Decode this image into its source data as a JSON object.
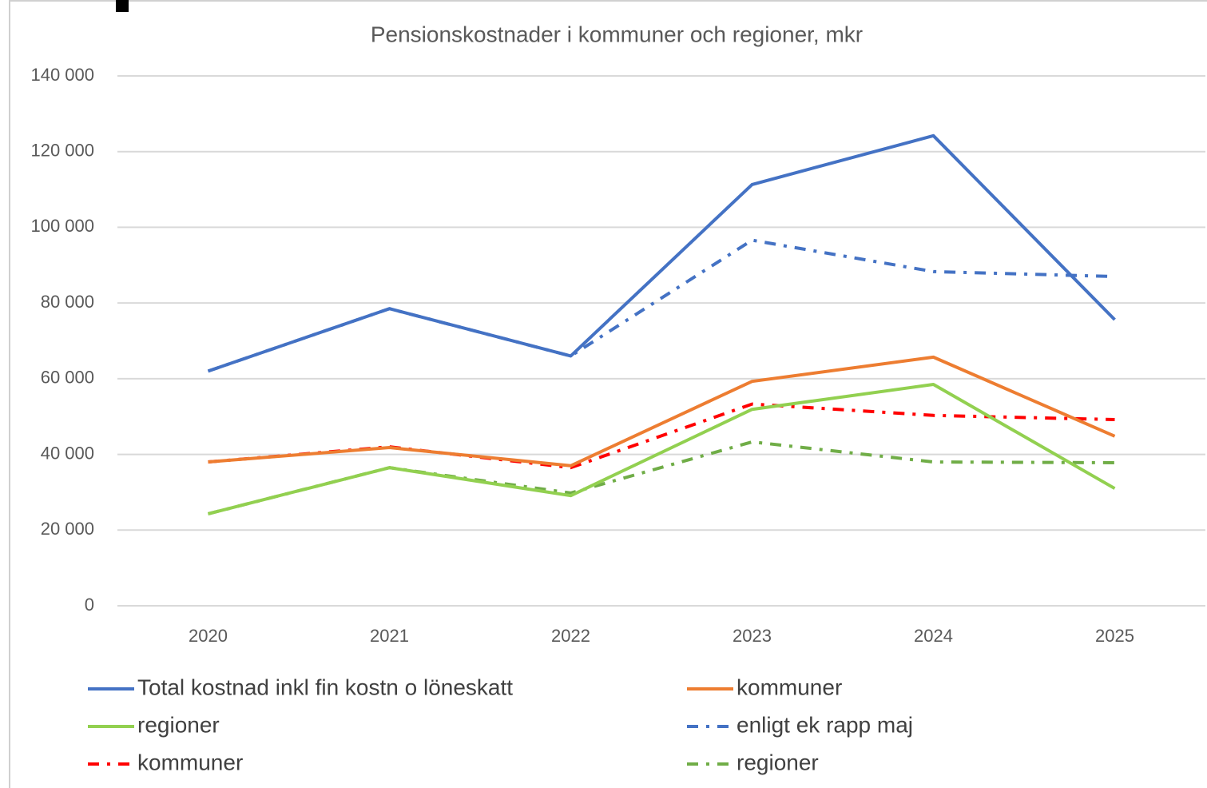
{
  "chart_data": {
    "type": "line",
    "title": "Pensionskostnader i kommuner och regioner, mkr",
    "categories": [
      "2020",
      "2021",
      "2022",
      "2023",
      "2024",
      "2025"
    ],
    "series": [
      {
        "name": "Total kostnad inkl fin kostn o löneskatt",
        "color": "#4472c4",
        "style": "solid",
        "values": [
          62000,
          78500,
          66000,
          111300,
          124200,
          75600
        ]
      },
      {
        "name": "kommuner",
        "color": "#ed7d31",
        "style": "solid",
        "values": [
          38000,
          41800,
          37000,
          59300,
          65700,
          44800
        ]
      },
      {
        "name": "regioner",
        "color": "#92d050",
        "style": "solid",
        "values": [
          24300,
          36500,
          29100,
          51900,
          58500,
          31000
        ]
      },
      {
        "name": "enligt ek rapp maj",
        "color": "#4472c4",
        "style": "dashdot",
        "values": [
          62000,
          78500,
          66000,
          96600,
          88300,
          87000
        ]
      },
      {
        "name": "kommuner",
        "color": "#ff0000",
        "style": "dashdot",
        "values": [
          38000,
          42000,
          36500,
          53300,
          50300,
          49200
        ]
      },
      {
        "name": "regioner",
        "color": "#70ad47",
        "style": "dashdot",
        "values": [
          24300,
          36500,
          29800,
          43300,
          38000,
          37800
        ]
      }
    ],
    "ylim": [
      0,
      140000
    ],
    "yticks": [
      0,
      {
        "value": 20000,
        "label": "20 000"
      },
      {
        "value": 40000,
        "label": "40 000"
      },
      {
        "value": 60000,
        "label": "60 000"
      },
      {
        "value": 80000,
        "label": "80 000"
      },
      {
        "value": 100000,
        "label": "100 000"
      },
      {
        "value": 120000,
        "label": "120 000"
      },
      {
        "value": 140000,
        "label": "140 000"
      }
    ],
    "grid": true,
    "legend": "bottom"
  }
}
